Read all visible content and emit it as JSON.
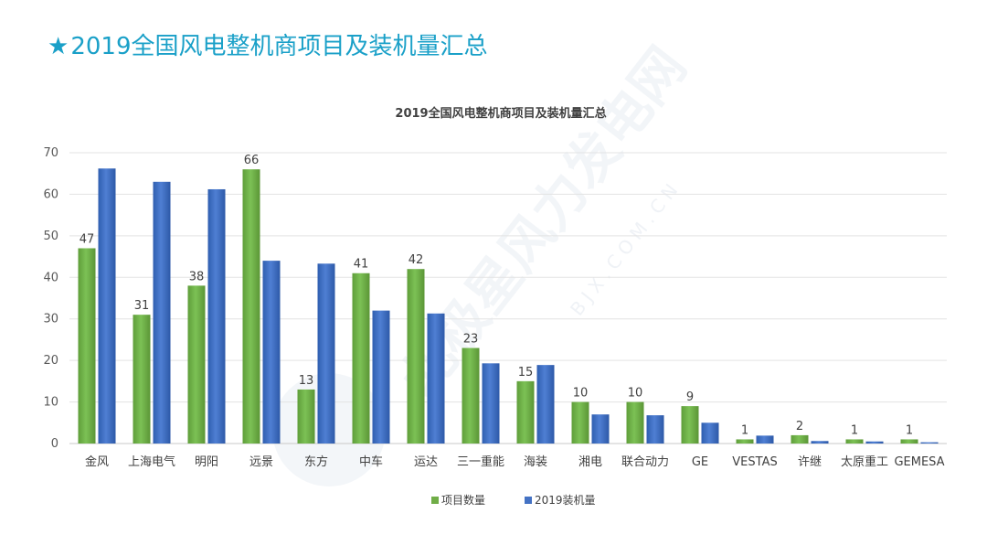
{
  "slide": {
    "star": "★",
    "title": "2019全国风电整机商项目及装机量汇总"
  },
  "watermark": {
    "text": "北极星风力发电网",
    "domain": "BJX.COM.CN"
  },
  "chart_data": {
    "type": "bar",
    "title": "2019全国风电整机商项目及装机量汇总",
    "xlabel": "",
    "ylabel": "",
    "ylim": [
      0,
      70
    ],
    "yticks": [
      0,
      10,
      20,
      30,
      40,
      50,
      60,
      70
    ],
    "grid": true,
    "legend_position": "bottom",
    "categories": [
      "金风",
      "上海电气",
      "明阳",
      "远景",
      "东方",
      "中车",
      "运达",
      "三一重能",
      "海装",
      "湘电",
      "联合动力",
      "GE",
      "VESTAS",
      "许继",
      "太原重工",
      "GEMESA"
    ],
    "series": [
      {
        "name": "项目数量",
        "color": "#70ad47",
        "values": [
          47,
          31,
          38,
          66,
          13,
          41,
          42,
          23,
          15,
          10,
          10,
          9,
          1,
          2,
          1,
          1
        ],
        "labels": [
          "47",
          "31",
          "38",
          "66",
          "13",
          "41",
          "42",
          "23",
          "15",
          "10",
          "10",
          "9",
          "1",
          "2",
          "1",
          "1"
        ]
      },
      {
        "name": "2019装机量",
        "color": "#4472c4",
        "values": [
          66.2,
          63.0,
          61.2,
          44.0,
          43.3,
          32.0,
          31.3,
          19.3,
          18.9,
          7.0,
          6.8,
          5.0,
          1.9,
          0.6,
          0.5,
          0.3
        ]
      }
    ]
  }
}
